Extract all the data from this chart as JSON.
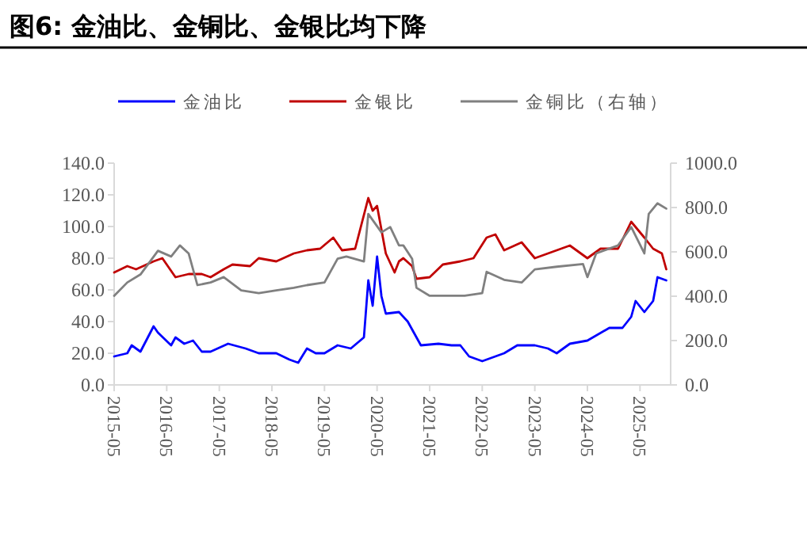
{
  "chart_data": {
    "type": "line",
    "title": "图6:  金油比、金铜比、金银比均下降",
    "xlim": [
      "2015-05",
      "2025-12"
    ],
    "xticks": [
      "2015-05",
      "2016-05",
      "2017-05",
      "2018-05",
      "2019-05",
      "2020-05",
      "2021-05",
      "2022-05",
      "2023-05",
      "2024-05",
      "2025-05"
    ],
    "ylim": [
      0,
      140
    ],
    "yticks": [
      {
        "value": 0,
        "label": "0.0"
      },
      {
        "value": 20,
        "label": "20.0"
      },
      {
        "value": 40,
        "label": "40.0"
      },
      {
        "value": 60,
        "label": "60.0"
      },
      {
        "value": 80,
        "label": "80.0"
      },
      {
        "value": 100,
        "label": "100.0"
      },
      {
        "value": 120,
        "label": "120.0"
      },
      {
        "value": 140,
        "label": "140.0"
      }
    ],
    "y2lim": [
      0,
      1000
    ],
    "y2ticks": [
      {
        "value": 0,
        "label": "0.0"
      },
      {
        "value": 200,
        "label": "200.0"
      },
      {
        "value": 400,
        "label": "400.0"
      },
      {
        "value": 600,
        "label": "600.0"
      },
      {
        "value": 800,
        "label": "800.0"
      },
      {
        "value": 1000,
        "label": "1000.0"
      }
    ],
    "legend": "top",
    "grid": false,
    "marker": "none",
    "line_style": "solid",
    "series": [
      {
        "name": "金油比",
        "color": "#0000ff",
        "x": [
          "2015-05",
          "2015-08",
          "2015-09",
          "2015-11",
          "2016-02",
          "2016-03",
          "2016-06",
          "2016-07",
          "2016-09",
          "2016-11",
          "2017-01",
          "2017-03",
          "2017-07",
          "2017-11",
          "2018-02",
          "2018-06",
          "2018-09",
          "2018-11",
          "2019-01",
          "2019-03",
          "2019-05",
          "2019-08",
          "2019-11",
          "2020-02",
          "2020-03",
          "2020-04",
          "2020-05",
          "2020-06",
          "2020-07",
          "2020-10",
          "2020-12",
          "2021-02",
          "2021-03",
          "2021-07",
          "2021-10",
          "2021-12",
          "2022-02",
          "2022-05",
          "2022-10",
          "2023-01",
          "2023-05",
          "2023-08",
          "2023-10",
          "2024-01",
          "2024-05",
          "2024-10",
          "2025-01",
          "2025-03",
          "2025-04",
          "2025-06",
          "2025-08",
          "2025-09",
          "2025-11"
        ],
        "values": [
          18,
          20,
          25,
          21,
          37,
          33,
          25,
          30,
          26,
          28,
          21,
          21,
          26,
          23,
          20,
          20,
          16,
          14,
          23,
          20,
          20,
          25,
          23,
          30,
          66,
          50,
          81,
          56,
          45,
          46,
          40,
          30,
          25,
          26,
          25,
          25,
          18,
          15,
          20,
          25,
          25,
          23,
          20,
          26,
          28,
          36,
          36,
          43,
          53,
          46,
          53,
          68,
          66
        ]
      },
      {
        "name": "金银比",
        "color": "#c00000",
        "x": [
          "2015-05",
          "2015-08",
          "2015-10",
          "2016-02",
          "2016-04",
          "2016-07",
          "2016-10",
          "2017-01",
          "2017-03",
          "2017-06",
          "2017-08",
          "2017-12",
          "2018-02",
          "2018-06",
          "2018-10",
          "2019-01",
          "2019-04",
          "2019-07",
          "2019-09",
          "2019-12",
          "2020-03",
          "2020-04",
          "2020-05",
          "2020-07",
          "2020-09",
          "2020-10",
          "2020-11",
          "2021-01",
          "2021-02",
          "2021-05",
          "2021-08",
          "2021-12",
          "2022-03",
          "2022-06",
          "2022-08",
          "2022-10",
          "2023-02",
          "2023-05",
          "2023-08",
          "2024-01",
          "2024-05",
          "2024-08",
          "2024-12",
          "2025-03",
          "2025-06",
          "2025-08",
          "2025-10",
          "2025-11"
        ],
        "values": [
          71,
          75,
          73,
          78,
          80,
          68,
          70,
          70,
          68,
          73,
          76,
          75,
          80,
          78,
          83,
          85,
          86,
          93,
          85,
          86,
          118,
          110,
          113,
          83,
          71,
          78,
          80,
          75,
          67,
          68,
          76,
          78,
          80,
          93,
          95,
          85,
          90,
          80,
          83,
          88,
          80,
          86,
          86,
          103,
          93,
          86,
          83,
          73
        ]
      },
      {
        "name": "金铜比（右轴）",
        "color": "#808080",
        "axis": "y2",
        "x": [
          "2015-05",
          "2015-08",
          "2015-11",
          "2016-03",
          "2016-06",
          "2016-08",
          "2016-10",
          "2016-12",
          "2017-03",
          "2017-06",
          "2017-10",
          "2018-02",
          "2018-06",
          "2018-10",
          "2019-01",
          "2019-05",
          "2019-08",
          "2019-10",
          "2020-02",
          "2020-03",
          "2020-06",
          "2020-08",
          "2020-10",
          "2020-11",
          "2021-01",
          "2021-02",
          "2021-05",
          "2021-10",
          "2022-01",
          "2022-05",
          "2022-06",
          "2022-10",
          "2023-02",
          "2023-05",
          "2023-10",
          "2024-04",
          "2024-05",
          "2024-07",
          "2024-12",
          "2025-03",
          "2025-06",
          "2025-07",
          "2025-09",
          "2025-11"
        ],
        "values": [
          402,
          462,
          498,
          605,
          579,
          629,
          593,
          450,
          462,
          486,
          426,
          414,
          426,
          438,
          450,
          462,
          569,
          579,
          557,
          771,
          688,
          712,
          629,
          629,
          569,
          438,
          402,
          402,
          402,
          414,
          510,
          474,
          462,
          521,
          533,
          545,
          486,
          593,
          629,
          712,
          593,
          771,
          819,
          795
        ]
      }
    ]
  }
}
